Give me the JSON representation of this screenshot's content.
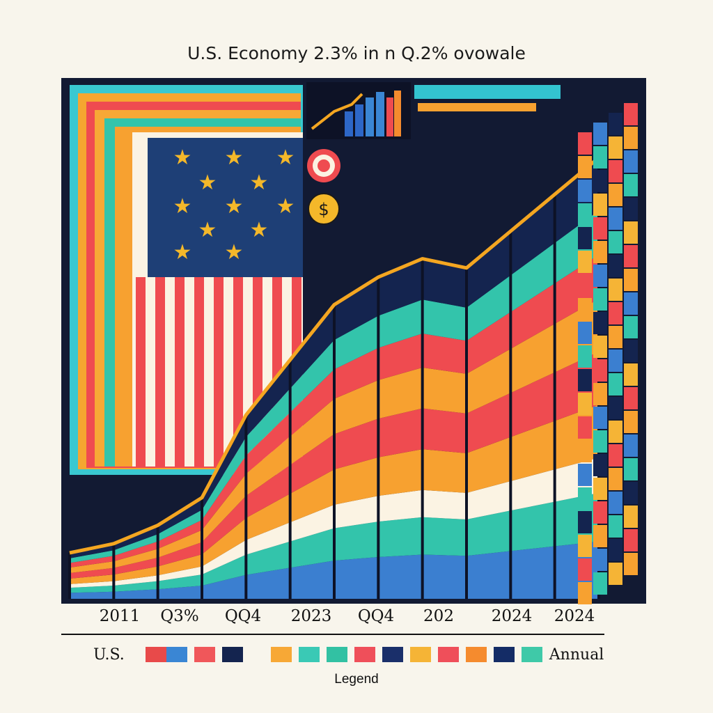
{
  "chart_data": {
    "type": "area",
    "title": "U.S. Economy 2.3% in n Q.2% ovowale",
    "tick_labels": [
      "2011",
      "Q3%",
      "QQ4",
      "2023",
      "QQ4",
      "202",
      "2024",
      "2024"
    ],
    "series": [
      {
        "values": [
          10,
          12,
          16,
          22,
          40,
          52,
          64,
          70,
          74,
          72,
          80,
          88,
          96
        ]
      }
    ],
    "ylim": [
      0,
      100
    ],
    "legend": {
      "left_label": "U.S.",
      "right_label": "Annual",
      "caption": "Legend",
      "placement": "bottom",
      "swatches": [
        "#e84a4a",
        "#3a86d4",
        "#f0575a",
        "#14244f",
        "#f7a836",
        "#3ac9b5",
        "#32c1a3",
        "#ef4f5a",
        "#1a2f6a",
        "#f5b436",
        "#ef4f5a",
        "#f58b2e",
        "#142c66",
        "#3fc9a8"
      ]
    }
  },
  "colors": {
    "navy": "#14244f",
    "teal": "#33c4ab",
    "orange": "#f7a130",
    "red": "#ef4b50",
    "blue": "#3b7fd0",
    "cream": "#fbf3e3",
    "line": "#f4a621"
  },
  "icons": [
    "flag-stars-icon",
    "target-icon",
    "dollar-coin-icon",
    "mini-bar-chart-icon"
  ]
}
